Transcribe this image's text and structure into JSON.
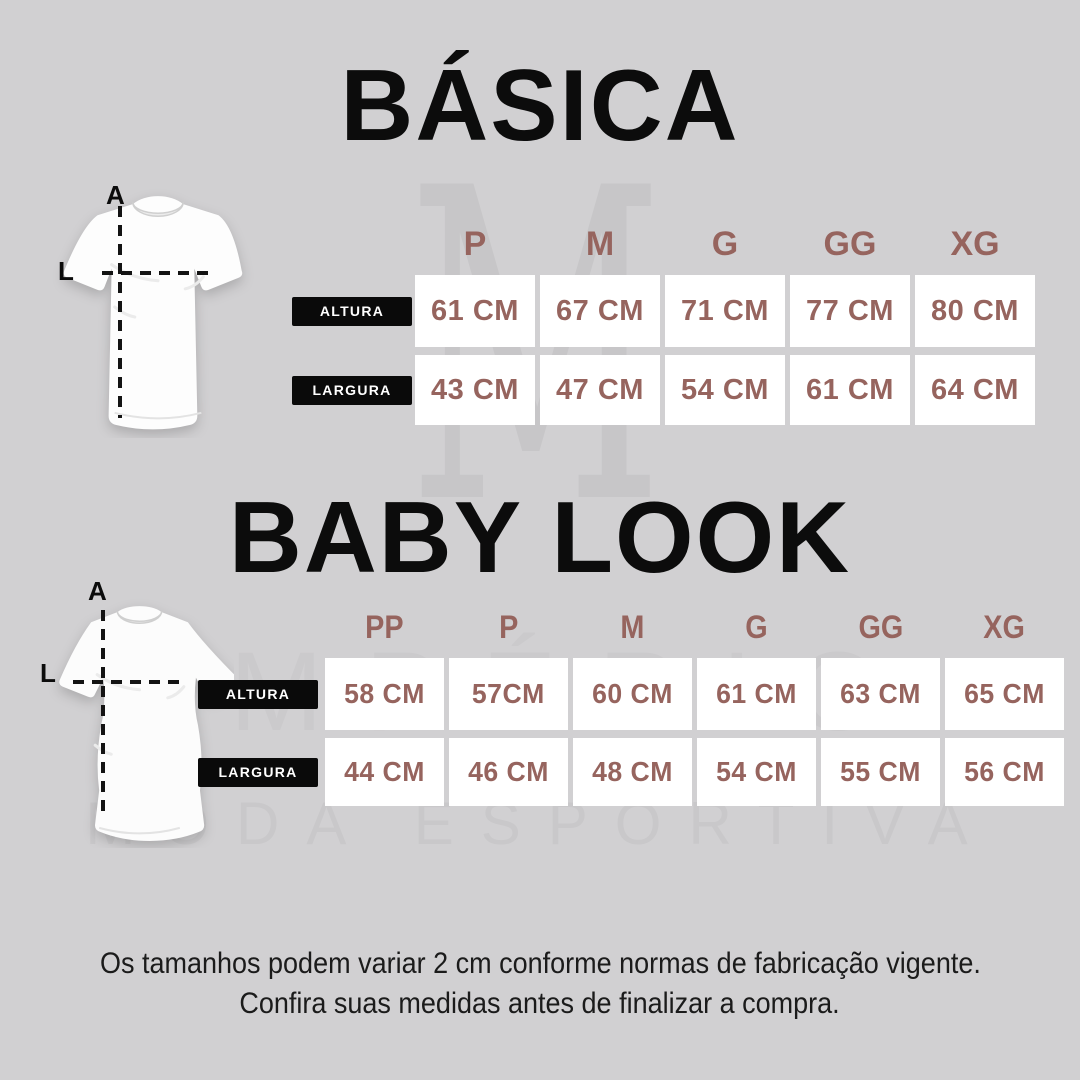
{
  "colors": {
    "background": "#d1d0d2",
    "accent_brown": "#96645e",
    "row_label_bg": "#0a0a0a",
    "cell_bg": "#ffffff",
    "title_black": "#0c0c0c",
    "watermark_gray": "#c7c6c8"
  },
  "watermark": {
    "monogram": "M",
    "brand_top": "IMPÉRIO",
    "brand_bottom": "MODA ESPORTIVA"
  },
  "diagram_labels": {
    "height_letter": "A",
    "width_letter": "L"
  },
  "tables": [
    {
      "title": "BÁSICA",
      "sizes": [
        "P",
        "M",
        "G",
        "GG",
        "XG"
      ],
      "rows": [
        {
          "label": "ALTURA",
          "values": [
            "61 CM",
            "67 CM",
            "71 CM",
            "77 CM",
            "80 CM"
          ]
        },
        {
          "label": "LARGURA",
          "values": [
            "43 CM",
            "47 CM",
            "54 CM",
            "61 CM",
            "64 CM"
          ]
        }
      ]
    },
    {
      "title": "BABY LOOK",
      "sizes": [
        "PP",
        "P",
        "M",
        "G",
        "GG",
        "XG"
      ],
      "rows": [
        {
          "label": "ALTURA",
          "values": [
            "58 CM",
            "57CM",
            "60 CM",
            "61 CM",
            "63 CM",
            "65 CM"
          ]
        },
        {
          "label": "LARGURA",
          "values": [
            "44 CM",
            "46 CM",
            "48 CM",
            "54 CM",
            "55 CM",
            "56 CM"
          ]
        }
      ]
    }
  ],
  "disclaimer": {
    "line1": "Os tamanhos podem variar 2 cm conforme normas de fabricação vigente.",
    "line2": "Confira suas medidas antes de finalizar a compra."
  }
}
